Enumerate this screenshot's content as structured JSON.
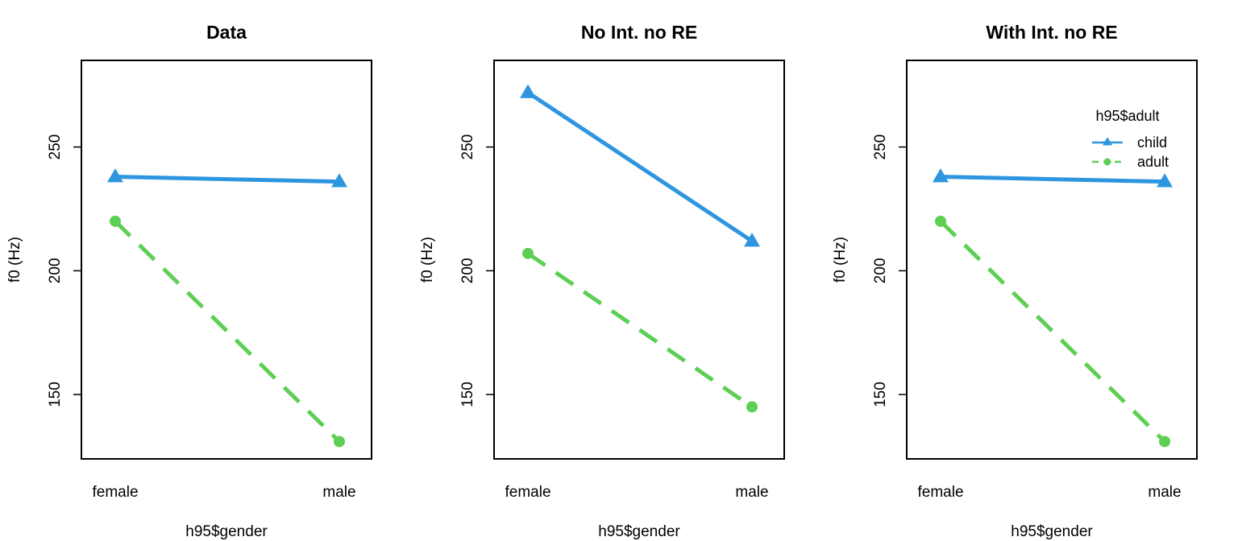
{
  "colors": {
    "child": "#2e96e0",
    "adult": "#5ecf55",
    "axis": "#000000",
    "background": "#ffffff"
  },
  "chart_data": [
    {
      "type": "line",
      "title": "Data",
      "xlabel": "h95$gender",
      "ylabel": "f0 (Hz)",
      "categories": [
        "female",
        "male"
      ],
      "ylim": [
        124,
        285
      ],
      "yticks": [
        150,
        200,
        250
      ],
      "grid": false,
      "series": [
        {
          "name": "child",
          "values": [
            238,
            236
          ],
          "marker": "triangle",
          "line": "solid"
        },
        {
          "name": "adult",
          "values": [
            220,
            131
          ],
          "marker": "circle",
          "line": "dashed"
        }
      ]
    },
    {
      "type": "line",
      "title": "No Int. no RE",
      "xlabel": "h95$gender",
      "ylabel": "f0 (Hz)",
      "categories": [
        "female",
        "male"
      ],
      "ylim": [
        124,
        285
      ],
      "yticks": [
        150,
        200,
        250
      ],
      "grid": false,
      "series": [
        {
          "name": "child",
          "values": [
            272,
            212
          ],
          "marker": "triangle",
          "line": "solid"
        },
        {
          "name": "adult",
          "values": [
            207,
            145
          ],
          "marker": "circle",
          "line": "dashed"
        }
      ]
    },
    {
      "type": "line",
      "title": "With Int. no RE",
      "xlabel": "h95$gender",
      "ylabel": "f0 (Hz)",
      "categories": [
        "female",
        "male"
      ],
      "ylim": [
        124,
        285
      ],
      "yticks": [
        150,
        200,
        250
      ],
      "grid": false,
      "legend": {
        "title": "h95$adult",
        "placement": "top-right",
        "entries": [
          "child",
          "adult"
        ]
      },
      "series": [
        {
          "name": "child",
          "values": [
            238,
            236
          ],
          "marker": "triangle",
          "line": "solid"
        },
        {
          "name": "adult",
          "values": [
            220,
            131
          ],
          "marker": "circle",
          "line": "dashed"
        }
      ]
    }
  ]
}
